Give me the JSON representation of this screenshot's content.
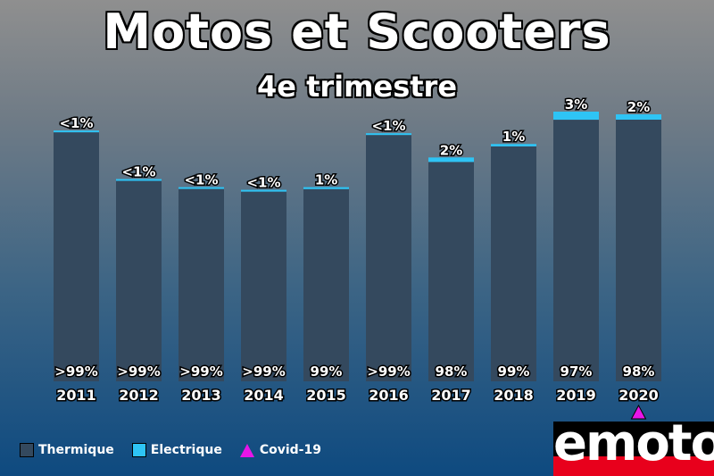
{
  "chart_data": {
    "type": "bar",
    "stacked": true,
    "title": "Motos et Scooters",
    "subtitle": "4e trimestre",
    "categories": [
      "2011",
      "2012",
      "2013",
      "2014",
      "2015",
      "2016",
      "2017",
      "2018",
      "2019",
      "2020"
    ],
    "series": [
      {
        "name": "Thermique",
        "color": "#34495e",
        "values": [
          99.6,
          99.6,
          99.6,
          99.6,
          99,
          99.6,
          98,
          99,
          97,
          98
        ],
        "labels": [
          ">99%",
          ">99%",
          ">99%",
          ">99%",
          "99%",
          ">99%",
          "98%",
          "99%",
          "97%",
          "98%"
        ]
      },
      {
        "name": "Electrique",
        "color": "#2ec4f5",
        "values": [
          0.4,
          0.4,
          0.4,
          0.4,
          1,
          0.4,
          2,
          1,
          3,
          2
        ],
        "labels": [
          "<1%",
          "<1%",
          "<1%",
          "<1%",
          "1%",
          "<1%",
          "2%",
          "1%",
          "3%",
          "2%"
        ]
      }
    ],
    "relative_totals": [
      0.93,
      0.75,
      0.72,
      0.71,
      0.72,
      0.92,
      0.83,
      0.88,
      1.0,
      0.99
    ],
    "annotations": [
      {
        "name": "Covid-19",
        "category": "2020",
        "marker": "triangle",
        "color": "#e815e8"
      }
    ],
    "legend": {
      "placement": "bottom-left",
      "items": [
        {
          "label": "Thermique",
          "color": "#34495e",
          "shape": "square"
        },
        {
          "label": "Electrique",
          "color": "#2ec4f5",
          "shape": "square"
        },
        {
          "label": "Covid-19",
          "color": "#e815e8",
          "shape": "triangle"
        }
      ]
    },
    "grid": false
  },
  "logo": {
    "text": "emoto"
  }
}
